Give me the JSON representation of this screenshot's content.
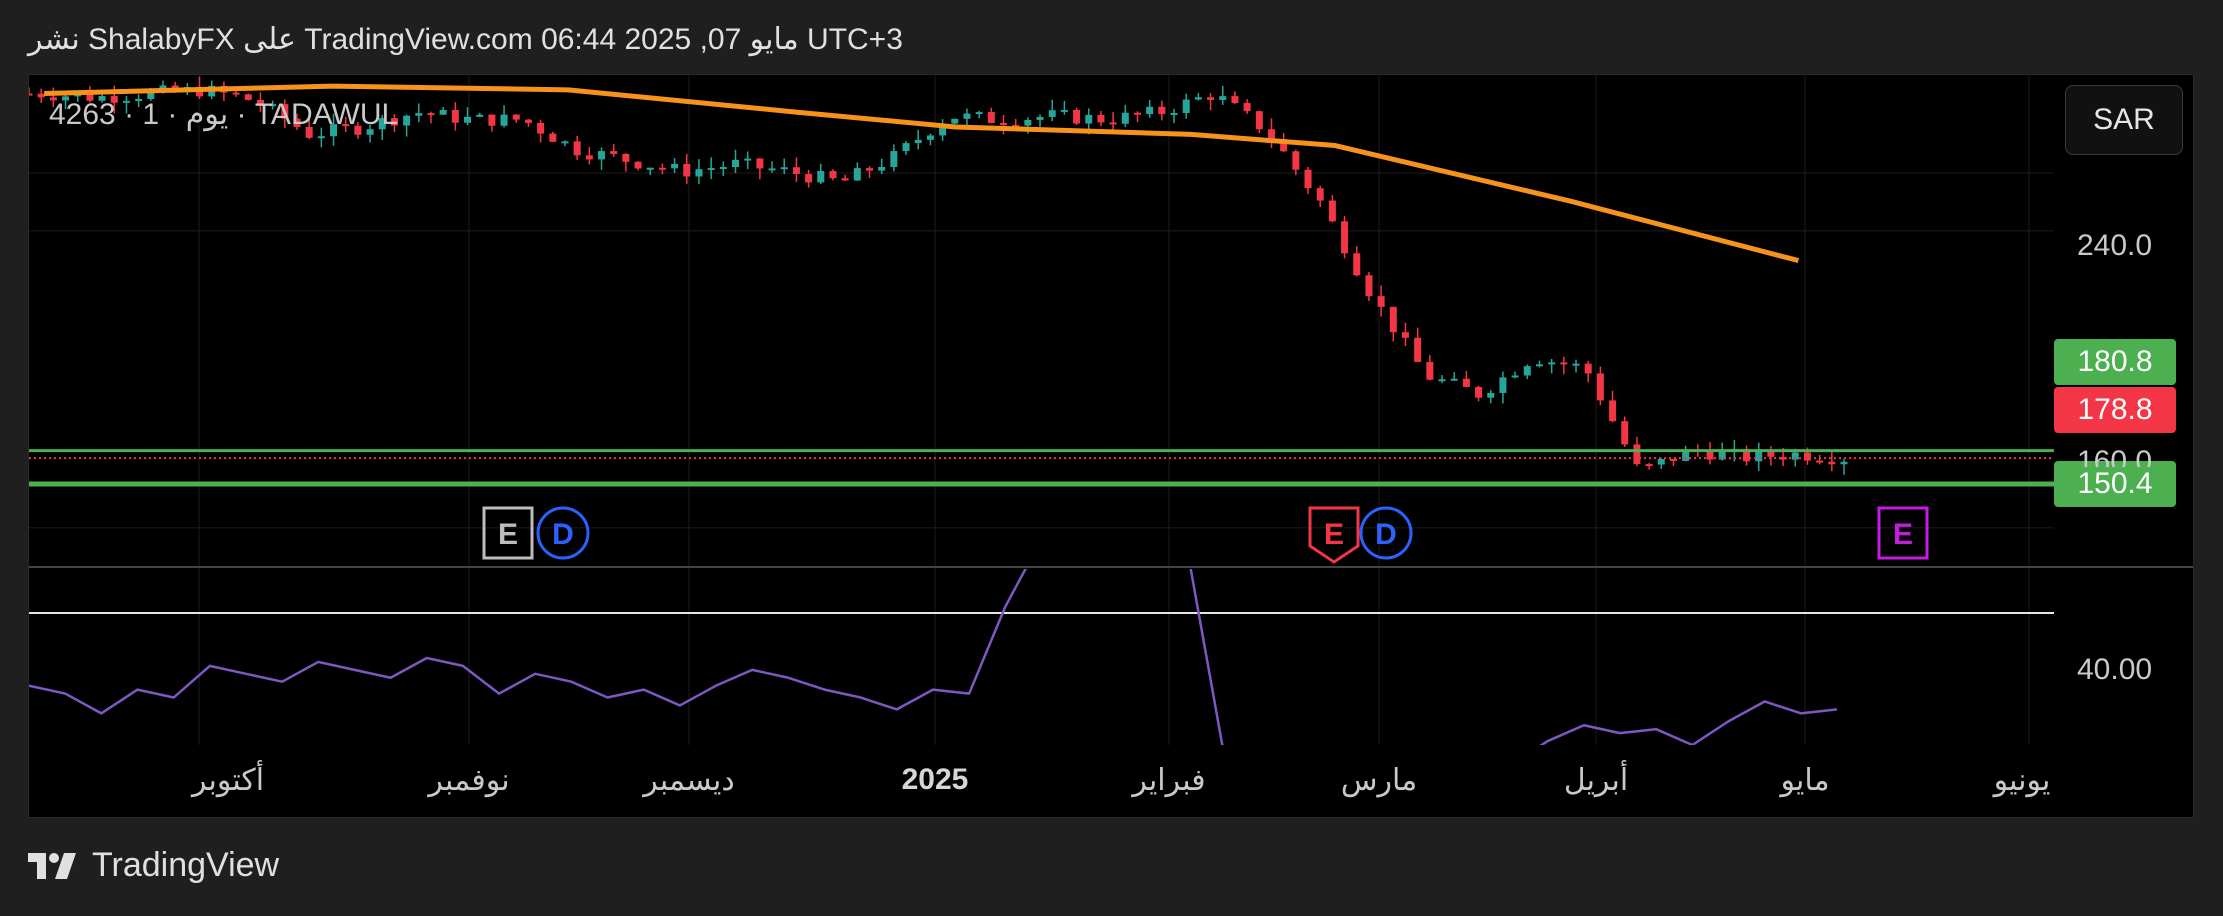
{
  "header": {
    "title": "نشر ShalabyFX على TradingView.com مايو 07, 2025 06:44 UTC+3"
  },
  "symbol": {
    "label": "4263 · 1 · يوم · TADAWUL"
  },
  "currency": "SAR",
  "price_tags": {
    "high_line": {
      "value": "180.8",
      "color": "#4caf50"
    },
    "last_price": {
      "value": "178.8",
      "color": "#f23645"
    },
    "support": {
      "value": "150.4",
      "color": "#4caf50"
    }
  },
  "axis": {
    "price_labels": [
      "240.0",
      "160.0"
    ],
    "rsi_label": "40.00",
    "months": [
      "أكتوبر",
      "نوفمبر",
      "ديسمبر",
      "2025",
      "فبراير",
      "مارس",
      "أبريل",
      "مايو",
      "يونيو"
    ]
  },
  "event_markers": [
    {
      "letter": "E",
      "kind": "earnings"
    },
    {
      "letter": "D",
      "kind": "dividend"
    },
    {
      "letter": "E",
      "kind": "earnings"
    },
    {
      "letter": "D",
      "kind": "dividend"
    },
    {
      "letter": "E",
      "kind": "earnings"
    }
  ],
  "footer": {
    "brand": "TradingView"
  },
  "colors": {
    "up": "#26a69a",
    "down": "#f23645",
    "ma": "#f7931a",
    "rsi": "#7e57c2",
    "level": "#4caf50",
    "earnings_future": "#c41de0",
    "dividend": "#2962ff"
  },
  "chart_data": {
    "type": "candlestick",
    "title": "4263 · 1 · يوم · TADAWUL",
    "x_axis_months": [
      "أكتوبر",
      "نوفمبر",
      "ديسمبر",
      "2025",
      "فبراير",
      "مارس",
      "أبريل",
      "مايو",
      "يونيو"
    ],
    "y_ticks": [
      240.0,
      160.0
    ],
    "ylim": [
      150,
      282
    ],
    "price_series": [
      {
        "t": "2024-09-12",
        "c": 277
      },
      {
        "t": "2024-09-19",
        "c": 276
      },
      {
        "t": "2024-09-26",
        "c": 277
      },
      {
        "t": "2024-10-03",
        "c": 278
      },
      {
        "t": "2024-10-10",
        "c": 275
      },
      {
        "t": "2024-10-17",
        "c": 266
      },
      {
        "t": "2024-10-24",
        "c": 268
      },
      {
        "t": "2024-10-31",
        "c": 272
      },
      {
        "t": "2024-11-07",
        "c": 270
      },
      {
        "t": "2024-11-14",
        "c": 270
      },
      {
        "t": "2024-11-21",
        "c": 262
      },
      {
        "t": "2024-11-28",
        "c": 259
      },
      {
        "t": "2024-12-05",
        "c": 256
      },
      {
        "t": "2024-12-12",
        "c": 258
      },
      {
        "t": "2024-12-19",
        "c": 256
      },
      {
        "t": "2024-12-26",
        "c": 253
      },
      {
        "t": "2025-01-02",
        "c": 260
      },
      {
        "t": "2025-01-09",
        "c": 271
      },
      {
        "t": "2025-01-16",
        "c": 270
      },
      {
        "t": "2025-01-23",
        "c": 271
      },
      {
        "t": "2025-01-30",
        "c": 270
      },
      {
        "t": "2025-02-06",
        "c": 272
      },
      {
        "t": "2025-02-13",
        "c": 277
      },
      {
        "t": "2025-02-20",
        "c": 267
      },
      {
        "t": "2025-02-27",
        "c": 248
      },
      {
        "t": "2025-03-06",
        "c": 222
      },
      {
        "t": "2025-03-13",
        "c": 201
      },
      {
        "t": "2025-03-20",
        "c": 196
      },
      {
        "t": "2025-03-27",
        "c": 206
      },
      {
        "t": "2025-04-03",
        "c": 203
      },
      {
        "t": "2025-04-10",
        "c": 175
      },
      {
        "t": "2025-04-17",
        "c": 181
      },
      {
        "t": "2025-04-24",
        "c": 179
      },
      {
        "t": "2025-05-01",
        "c": 180
      },
      {
        "t": "2025-05-07",
        "c": 178.8
      }
    ],
    "moving_average": [
      {
        "t": "2024-09-12",
        "v": 277
      },
      {
        "t": "2024-10-20",
        "v": 279
      },
      {
        "t": "2024-11-20",
        "v": 278
      },
      {
        "t": "2024-12-20",
        "v": 272
      },
      {
        "t": "2025-01-10",
        "v": 268
      },
      {
        "t": "2025-02-10",
        "v": 266
      },
      {
        "t": "2025-03-01",
        "v": 263
      },
      {
        "t": "2025-04-01",
        "v": 248
      },
      {
        "t": "2025-05-01",
        "v": 232
      }
    ],
    "levels": {
      "high_line": 180.8,
      "last_price": 178.8,
      "support": 150.4
    },
    "rsi": {
      "label": "40.00",
      "upper_level_line": true,
      "values": [
        45,
        43,
        38,
        44,
        42,
        50,
        48,
        46,
        51,
        49,
        47,
        52,
        50,
        43,
        48,
        46,
        42,
        44,
        40,
        45,
        49,
        47,
        44,
        42,
        39,
        44,
        43,
        65,
        82,
        80,
        79,
        83,
        81,
        30,
        22,
        18,
        25,
        24,
        20,
        26,
        22,
        25,
        31,
        35,
        33,
        34,
        30,
        36,
        41,
        38,
        39
      ]
    }
  }
}
